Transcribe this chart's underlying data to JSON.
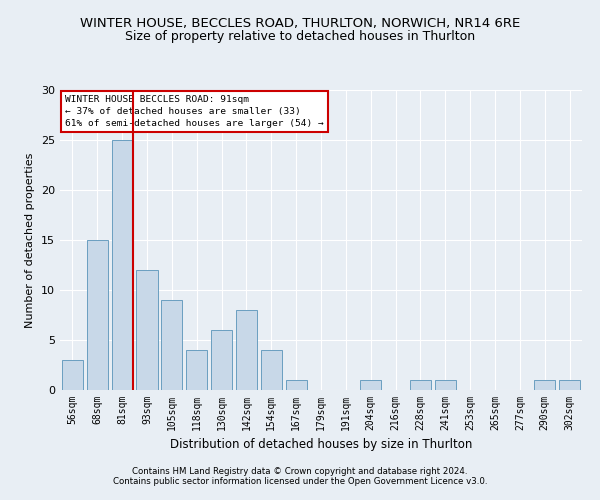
{
  "title": "WINTER HOUSE, BECCLES ROAD, THURLTON, NORWICH, NR14 6RE",
  "subtitle": "Size of property relative to detached houses in Thurlton",
  "xlabel": "Distribution of detached houses by size in Thurlton",
  "ylabel": "Number of detached properties",
  "categories": [
    "56sqm",
    "68sqm",
    "81sqm",
    "93sqm",
    "105sqm",
    "118sqm",
    "130sqm",
    "142sqm",
    "154sqm",
    "167sqm",
    "179sqm",
    "191sqm",
    "204sqm",
    "216sqm",
    "228sqm",
    "241sqm",
    "253sqm",
    "265sqm",
    "277sqm",
    "290sqm",
    "302sqm"
  ],
  "values": [
    3,
    15,
    25,
    12,
    9,
    4,
    6,
    8,
    4,
    1,
    0,
    0,
    1,
    0,
    1,
    1,
    0,
    0,
    0,
    1,
    1
  ],
  "bar_color": "#c8d8e8",
  "bar_edge_color": "#6a9ec0",
  "highlight_bar_index": 2,
  "highlight_line_color": "#cc0000",
  "annotation_text": "WINTER HOUSE BECCLES ROAD: 91sqm\n← 37% of detached houses are smaller (33)\n61% of semi-detached houses are larger (54) →",
  "annotation_box_color": "#ffffff",
  "annotation_box_edge_color": "#cc0000",
  "ylim": [
    0,
    30
  ],
  "yticks": [
    0,
    5,
    10,
    15,
    20,
    25,
    30
  ],
  "footer_line1": "Contains HM Land Registry data © Crown copyright and database right 2024.",
  "footer_line2": "Contains public sector information licensed under the Open Government Licence v3.0.",
  "background_color": "#e8eef4",
  "grid_color": "#ffffff",
  "title_fontsize": 9.5,
  "subtitle_fontsize": 9
}
